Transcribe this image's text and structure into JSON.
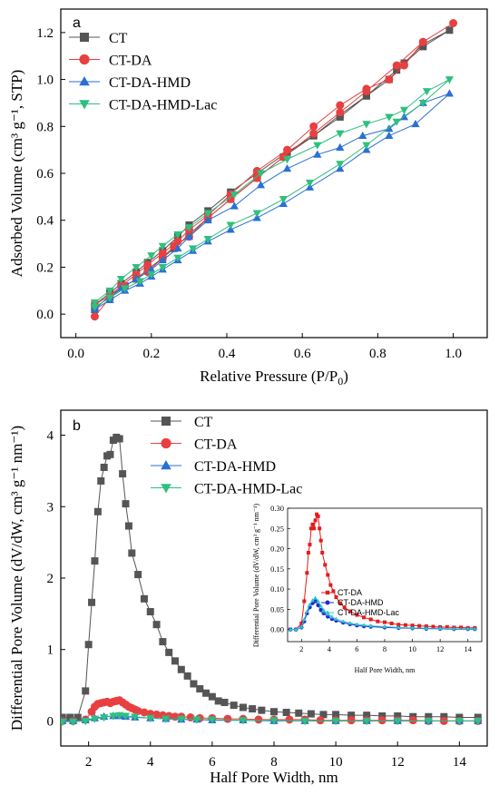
{
  "chart_data": [
    {
      "type": "line",
      "panel": "a",
      "xlabel": "Relative Pressure (P/P",
      "xlabel_sub": "0",
      "xlabel_close": ")",
      "ylabel": "Adsorbed Volume (cm³ g⁻¹, STP)",
      "xlim": [
        -0.04,
        1.09
      ],
      "ylim": [
        -0.1,
        1.3
      ],
      "xticks": [
        0.0,
        0.2,
        0.4,
        0.6,
        0.8,
        1.0
      ],
      "xtick_labels": [
        "0.0",
        "0.2",
        "0.4",
        "0.6",
        "0.8",
        "1.0"
      ],
      "yticks": [
        0.0,
        0.2,
        0.4,
        0.6,
        0.8,
        1.0,
        1.2
      ],
      "ytick_labels": [
        "0.0",
        "0.2",
        "0.4",
        "0.6",
        "0.8",
        "1.0",
        "1.2"
      ],
      "legend_position": "top-left",
      "series": [
        {
          "name": "CT",
          "color": "#555555",
          "marker": "square",
          "x": [
            0.05,
            0.09,
            0.13,
            0.16,
            0.19,
            0.23,
            0.26,
            0.3,
            0.35,
            0.41,
            0.48,
            0.55,
            0.63,
            0.7,
            0.77,
            0.85,
            0.92,
            0.99,
            0.92,
            0.87,
            0.83,
            0.77,
            0.7,
            0.63,
            0.56,
            0.48,
            0.41,
            0.35,
            0.3,
            0.27,
            0.23,
            0.19,
            0.16,
            0.12,
            0.09,
            0.05
          ],
          "y": [
            0.02,
            0.08,
            0.12,
            0.15,
            0.19,
            0.24,
            0.28,
            0.34,
            0.41,
            0.49,
            0.58,
            0.67,
            0.76,
            0.85,
            0.93,
            1.04,
            1.14,
            1.21,
            1.15,
            1.07,
            1.0,
            0.93,
            0.84,
            0.76,
            0.69,
            0.6,
            0.52,
            0.44,
            0.38,
            0.33,
            0.27,
            0.22,
            0.18,
            0.13,
            0.09,
            0.04
          ]
        },
        {
          "name": "CT-DA",
          "color": "#e84040",
          "marker": "circle",
          "x": [
            0.05,
            0.09,
            0.13,
            0.16,
            0.19,
            0.23,
            0.26,
            0.3,
            0.35,
            0.41,
            0.48,
            0.55,
            0.63,
            0.7,
            0.77,
            0.85,
            0.92,
            1.0,
            0.92,
            0.87,
            0.83,
            0.77,
            0.7,
            0.63,
            0.56,
            0.48,
            0.41,
            0.35,
            0.3,
            0.27,
            0.23,
            0.19,
            0.16,
            0.12,
            0.09,
            0.05
          ],
          "y": [
            -0.01,
            0.07,
            0.12,
            0.15,
            0.18,
            0.24,
            0.29,
            0.33,
            0.41,
            0.49,
            0.58,
            0.67,
            0.77,
            0.86,
            0.95,
            1.06,
            1.16,
            1.24,
            1.16,
            1.06,
            1.0,
            0.96,
            0.89,
            0.8,
            0.7,
            0.61,
            0.51,
            0.42,
            0.36,
            0.31,
            0.26,
            0.21,
            0.17,
            0.12,
            0.08,
            0.04
          ]
        },
        {
          "name": "CT-DA-HMD",
          "color": "#2a6fd6",
          "marker": "triangle-up",
          "x": [
            0.05,
            0.09,
            0.13,
            0.17,
            0.2,
            0.23,
            0.27,
            0.31,
            0.35,
            0.41,
            0.48,
            0.55,
            0.62,
            0.7,
            0.77,
            0.83,
            0.9,
            0.99,
            0.92,
            0.87,
            0.83,
            0.76,
            0.7,
            0.64,
            0.56,
            0.49,
            0.42,
            0.35,
            0.3,
            0.27,
            0.23,
            0.2,
            0.16,
            0.12,
            0.09,
            0.05
          ],
          "y": [
            0.02,
            0.06,
            0.1,
            0.13,
            0.16,
            0.19,
            0.23,
            0.27,
            0.31,
            0.36,
            0.41,
            0.47,
            0.54,
            0.62,
            0.7,
            0.76,
            0.81,
            0.94,
            0.9,
            0.84,
            0.79,
            0.76,
            0.71,
            0.68,
            0.62,
            0.55,
            0.46,
            0.4,
            0.33,
            0.28,
            0.23,
            0.19,
            0.15,
            0.11,
            0.07,
            0.03
          ]
        },
        {
          "name": "CT-DA-HMD-Lac",
          "color": "#2fbf7f",
          "marker": "triangle-down",
          "x": [
            0.05,
            0.09,
            0.13,
            0.17,
            0.2,
            0.23,
            0.27,
            0.31,
            0.35,
            0.41,
            0.48,
            0.55,
            0.62,
            0.7,
            0.77,
            0.85,
            0.92,
            0.99,
            0.93,
            0.87,
            0.83,
            0.77,
            0.7,
            0.64,
            0.56,
            0.49,
            0.42,
            0.35,
            0.3,
            0.27,
            0.23,
            0.2,
            0.16,
            0.12,
            0.09,
            0.05
          ],
          "y": [
            0.03,
            0.07,
            0.11,
            0.14,
            0.17,
            0.2,
            0.24,
            0.28,
            0.32,
            0.38,
            0.43,
            0.49,
            0.56,
            0.64,
            0.72,
            0.82,
            0.9,
            1.0,
            0.95,
            0.87,
            0.84,
            0.81,
            0.77,
            0.72,
            0.66,
            0.6,
            0.51,
            0.43,
            0.37,
            0.34,
            0.29,
            0.25,
            0.2,
            0.15,
            0.1,
            0.05
          ]
        }
      ]
    },
    {
      "type": "line",
      "panel": "b",
      "xlabel": "Half Pore Width, nm",
      "ylabel": "Differential Pore Volume (dV/dW, cm³ g⁻¹ nm⁻¹)",
      "xlim": [
        1.1,
        14.9
      ],
      "ylim": [
        -0.35,
        4.35
      ],
      "xticks": [
        2,
        4,
        6,
        8,
        10,
        12,
        14
      ],
      "xtick_labels": [
        "2",
        "4",
        "6",
        "8",
        "10",
        "12",
        "14"
      ],
      "yticks": [
        0,
        1,
        2,
        3,
        4
      ],
      "ytick_labels": [
        "0",
        "1",
        "2",
        "3",
        "4"
      ],
      "legend_position": "top-center",
      "series": [
        {
          "name": "CT",
          "color": "#555555",
          "marker": "square",
          "x": [
            1.15,
            1.4,
            1.65,
            1.9,
            2.0,
            2.1,
            2.2,
            2.3,
            2.4,
            2.5,
            2.6,
            2.7,
            2.8,
            2.9,
            3.0,
            3.1,
            3.2,
            3.3,
            3.4,
            3.6,
            3.8,
            4.0,
            4.2,
            4.4,
            4.6,
            4.8,
            5.0,
            5.2,
            5.4,
            5.6,
            5.8,
            6.0,
            6.2,
            6.4,
            6.7,
            7.0,
            7.3,
            7.6,
            8.0,
            8.4,
            8.8,
            9.2,
            9.6,
            10.0,
            10.5,
            11.0,
            11.5,
            12.0,
            12.5,
            13.0,
            13.5,
            14.0,
            14.6
          ],
          "y": [
            0.05,
            0.05,
            0.05,
            0.42,
            1.07,
            1.66,
            2.24,
            2.93,
            3.36,
            3.55,
            3.71,
            3.73,
            3.93,
            3.97,
            3.95,
            3.46,
            3.04,
            2.73,
            2.35,
            2.05,
            1.71,
            1.53,
            1.35,
            1.11,
            0.96,
            0.84,
            0.72,
            0.63,
            0.52,
            0.45,
            0.39,
            0.34,
            0.28,
            0.26,
            0.22,
            0.19,
            0.17,
            0.15,
            0.13,
            0.12,
            0.11,
            0.1,
            0.09,
            0.09,
            0.08,
            0.08,
            0.07,
            0.07,
            0.06,
            0.06,
            0.06,
            0.05,
            0.05
          ]
        },
        {
          "name": "CT-DA",
          "color": "#e84040",
          "marker": "circle",
          "x": [
            1.15,
            1.5,
            1.9,
            2.1,
            2.2,
            2.3,
            2.4,
            2.5,
            2.6,
            2.7,
            2.8,
            2.9,
            3.0,
            3.1,
            3.2,
            3.3,
            3.4,
            3.5,
            3.6,
            3.8,
            4.0,
            4.2,
            4.4,
            4.6,
            4.8,
            5.0,
            5.3,
            5.6,
            6.0,
            6.5,
            7.0,
            7.5,
            8.0,
            8.5,
            9.0,
            9.5,
            10.0,
            10.5,
            11.0,
            11.5,
            12.0,
            12.5,
            13.0,
            13.5,
            14.0,
            14.6
          ],
          "y": [
            0.0,
            0.0,
            0.02,
            0.13,
            0.2,
            0.24,
            0.25,
            0.26,
            0.27,
            0.25,
            0.27,
            0.28,
            0.29,
            0.26,
            0.23,
            0.2,
            0.18,
            0.16,
            0.14,
            0.12,
            0.1,
            0.09,
            0.08,
            0.07,
            0.06,
            0.06,
            0.05,
            0.04,
            0.04,
            0.03,
            0.03,
            0.02,
            0.02,
            0.02,
            0.02,
            0.01,
            0.01,
            0.01,
            0.01,
            0.01,
            0.01,
            0.01,
            0.0,
            0.0,
            0.0,
            0.0
          ]
        },
        {
          "name": "CT-DA-HMD",
          "color": "#2a6fd6",
          "marker": "triangle-up",
          "x": [
            1.15,
            1.5,
            1.9,
            2.2,
            2.5,
            2.8,
            3.0,
            3.2,
            3.5,
            4.0,
            4.5,
            5.0,
            5.5,
            6.0,
            7.0,
            8.0,
            9.0,
            10.0,
            11.0,
            12.0,
            13.0,
            14.0,
            14.6
          ],
          "y": [
            0.0,
            0.0,
            0.01,
            0.04,
            0.06,
            0.07,
            0.07,
            0.06,
            0.05,
            0.04,
            0.03,
            0.02,
            0.02,
            0.01,
            0.01,
            0.0,
            0.0,
            0.0,
            0.0,
            0.0,
            0.0,
            0.0,
            0.0
          ]
        },
        {
          "name": "CT-DA-HMD-Lac",
          "color": "#2fbf7f",
          "marker": "triangle-down",
          "x": [
            1.15,
            1.5,
            1.9,
            2.2,
            2.5,
            2.8,
            3.0,
            3.2,
            3.5,
            4.0,
            4.5,
            5.0,
            5.5,
            6.0,
            7.0,
            8.0,
            9.0,
            10.0,
            11.0,
            12.0,
            13.0,
            14.0,
            14.6
          ],
          "y": [
            -0.01,
            -0.01,
            0.0,
            0.03,
            0.05,
            0.07,
            0.08,
            0.07,
            0.06,
            0.04,
            0.03,
            0.03,
            0.02,
            0.02,
            0.01,
            0.01,
            0.0,
            0.0,
            0.0,
            0.0,
            0.0,
            0.0,
            0.0
          ]
        }
      ]
    },
    {
      "type": "line",
      "panel": "b-inset",
      "xlabel": "Half Pore Width, nm",
      "ylabel": "Differential Pore Volume (dV/dW, cm³ g⁻¹ nm⁻¹)",
      "xlim": [
        1.0,
        15.0
      ],
      "ylim": [
        -0.03,
        0.3
      ],
      "xticks": [
        2,
        4,
        6,
        8,
        10,
        12,
        14
      ],
      "xtick_labels": [
        "2",
        "4",
        "6",
        "8",
        "10",
        "12",
        "14"
      ],
      "yticks": [
        0.0,
        0.05,
        0.1,
        0.15,
        0.2,
        0.25,
        0.3
      ],
      "ytick_labels": [
        "0.00",
        "0.05",
        "0.10",
        "0.15",
        "0.20",
        "0.25",
        "0.30"
      ],
      "legend_position": "center-right",
      "series": [
        {
          "name": "CT-DA",
          "color": "#e51b1b",
          "marker": "square",
          "x": [
            1.2,
            1.6,
            2.0,
            2.2,
            2.4,
            2.5,
            2.6,
            2.7,
            2.8,
            2.9,
            3.0,
            3.1,
            3.2,
            3.3,
            3.4,
            3.5,
            3.7,
            3.9,
            4.1,
            4.3,
            4.5,
            4.8,
            5.1,
            5.5,
            6.0,
            6.5,
            7.0,
            7.5,
            8.0,
            8.5,
            9.0,
            9.5,
            10.0,
            10.5,
            11.0,
            11.5,
            12.0,
            12.5,
            13.0,
            13.5,
            14.0,
            14.5
          ],
          "y": [
            0.0,
            0.0,
            0.015,
            0.07,
            0.14,
            0.19,
            0.21,
            0.25,
            0.26,
            0.25,
            0.27,
            0.285,
            0.28,
            0.25,
            0.22,
            0.19,
            0.16,
            0.135,
            0.11,
            0.095,
            0.08,
            0.065,
            0.055,
            0.045,
            0.036,
            0.03,
            0.025,
            0.02,
            0.018,
            0.015,
            0.012,
            0.011,
            0.01,
            0.009,
            0.008,
            0.007,
            0.006,
            0.006,
            0.005,
            0.005,
            0.004,
            0.004
          ]
        },
        {
          "name": "CT-DA-HMD",
          "color": "#1f2bd6",
          "marker": "circle",
          "x": [
            1.2,
            1.6,
            2.0,
            2.2,
            2.4,
            2.6,
            2.8,
            3.0,
            3.2,
            3.4,
            3.6,
            3.9,
            4.2,
            4.5,
            5.0,
            5.5,
            6.0,
            6.5,
            7.0,
            8.0,
            9.0,
            10.0,
            11.0,
            12.0,
            13.0,
            14.0,
            14.5
          ],
          "y": [
            0.0,
            0.0,
            0.005,
            0.02,
            0.04,
            0.055,
            0.065,
            0.07,
            0.06,
            0.048,
            0.04,
            0.032,
            0.026,
            0.022,
            0.017,
            0.013,
            0.01,
            0.008,
            0.007,
            0.005,
            0.004,
            0.003,
            0.002,
            0.002,
            0.001,
            0.001,
            0.001
          ]
        },
        {
          "name": "CT-DA-HMD-Lac",
          "color": "#2dc6c6",
          "marker": "triangle-up",
          "x": [
            1.2,
            1.6,
            2.0,
            2.2,
            2.4,
            2.6,
            2.8,
            3.0,
            3.2,
            3.4,
            3.6,
            3.9,
            4.2,
            4.5,
            5.0,
            5.5,
            6.0,
            6.5,
            7.0,
            8.0,
            9.0,
            10.0,
            11.0,
            12.0,
            13.0,
            14.0,
            14.5
          ],
          "y": [
            0.0,
            0.0,
            0.006,
            0.025,
            0.045,
            0.062,
            0.072,
            0.078,
            0.07,
            0.058,
            0.048,
            0.038,
            0.031,
            0.026,
            0.02,
            0.016,
            0.013,
            0.011,
            0.009,
            0.007,
            0.005,
            0.004,
            0.003,
            0.003,
            0.002,
            0.002,
            0.002
          ]
        }
      ]
    }
  ]
}
